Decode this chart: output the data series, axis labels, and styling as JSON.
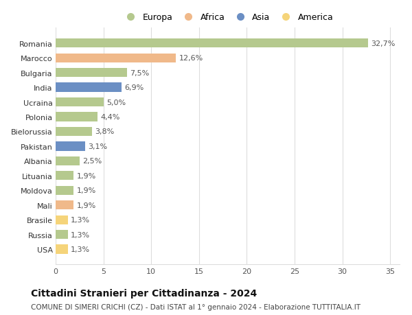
{
  "countries": [
    "Romania",
    "Marocco",
    "Bulgaria",
    "India",
    "Ucraina",
    "Polonia",
    "Bielorussia",
    "Pakistan",
    "Albania",
    "Lituania",
    "Moldova",
    "Mali",
    "Brasile",
    "Russia",
    "USA"
  ],
  "values": [
    32.7,
    12.6,
    7.5,
    6.9,
    5.0,
    4.4,
    3.8,
    3.1,
    2.5,
    1.9,
    1.9,
    1.9,
    1.3,
    1.3,
    1.3
  ],
  "labels": [
    "32,7%",
    "12,6%",
    "7,5%",
    "6,9%",
    "5,0%",
    "4,4%",
    "3,8%",
    "3,1%",
    "2,5%",
    "1,9%",
    "1,9%",
    "1,9%",
    "1,3%",
    "1,3%",
    "1,3%"
  ],
  "continents": [
    "Europa",
    "Africa",
    "Europa",
    "Asia",
    "Europa",
    "Europa",
    "Europa",
    "Asia",
    "Europa",
    "Europa",
    "Europa",
    "Africa",
    "America",
    "Europa",
    "America"
  ],
  "continent_colors": {
    "Europa": "#b5c98e",
    "Africa": "#f0b98a",
    "Asia": "#6b8fc4",
    "America": "#f5d47a"
  },
  "legend_order": [
    "Europa",
    "Africa",
    "Asia",
    "America"
  ],
  "title": "Cittadini Stranieri per Cittadinanza - 2024",
  "subtitle": "COMUNE DI SIMERI CRICHI (CZ) - Dati ISTAT al 1° gennaio 2024 - Elaborazione TUTTITALIA.IT",
  "xlim": [
    0,
    36
  ],
  "xticks": [
    0,
    5,
    10,
    15,
    20,
    25,
    30,
    35
  ],
  "background_color": "#ffffff",
  "grid_color": "#dddddd",
  "bar_height": 0.62,
  "title_fontsize": 10,
  "subtitle_fontsize": 7.5,
  "label_fontsize": 8,
  "tick_fontsize": 8,
  "legend_fontsize": 9
}
